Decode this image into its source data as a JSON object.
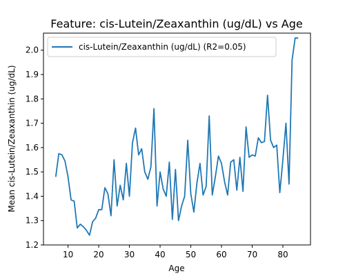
{
  "chart_data": {
    "type": "line",
    "title": "Feature: cis-Lutein/Zeaxanthin (ug/dL) vs Age",
    "xlabel": "Age",
    "ylabel": "Mean cis-Lutein/Zeaxanthin (ug/dL)",
    "xlim": [
      2,
      89
    ],
    "ylim": [
      1.2,
      2.07
    ],
    "xticks": [
      10,
      20,
      30,
      40,
      50,
      60,
      70,
      80
    ],
    "yticks": [
      1.2,
      1.3,
      1.4,
      1.5,
      1.6,
      1.7,
      1.8,
      1.9,
      2.0
    ],
    "grid": false,
    "legend": "top-left",
    "series": [
      {
        "name": "cis-Lutein/Zeaxanthin (ug/dL) (R2=0.05)",
        "color": "#1f77b4",
        "x": [
          6,
          7,
          8,
          9,
          10,
          11,
          12,
          13,
          14,
          15,
          16,
          17,
          18,
          19,
          20,
          21,
          22,
          23,
          24,
          25,
          26,
          27,
          28,
          29,
          30,
          31,
          32,
          33,
          34,
          35,
          36,
          37,
          38,
          39,
          40,
          41,
          42,
          43,
          44,
          45,
          46,
          47,
          48,
          49,
          50,
          51,
          52,
          53,
          54,
          55,
          56,
          57,
          58,
          59,
          60,
          61,
          62,
          63,
          64,
          65,
          66,
          67,
          68,
          69,
          70,
          71,
          72,
          73,
          74,
          75,
          76,
          77,
          78,
          79,
          80,
          81,
          82,
          83,
          84,
          85
        ],
        "y": [
          1.48,
          1.575,
          1.57,
          1.545,
          1.48,
          1.385,
          1.38,
          1.27,
          1.285,
          1.275,
          1.26,
          1.24,
          1.295,
          1.31,
          1.345,
          1.345,
          1.435,
          1.41,
          1.32,
          1.55,
          1.36,
          1.445,
          1.385,
          1.535,
          1.4,
          1.62,
          1.68,
          1.57,
          1.595,
          1.5,
          1.47,
          1.52,
          1.76,
          1.36,
          1.5,
          1.43,
          1.4,
          1.54,
          1.305,
          1.51,
          1.3,
          1.36,
          1.4,
          1.63,
          1.41,
          1.335,
          1.455,
          1.535,
          1.405,
          1.44,
          1.73,
          1.405,
          1.48,
          1.565,
          1.535,
          1.46,
          1.405,
          1.54,
          1.55,
          1.425,
          1.56,
          1.42,
          1.685,
          1.56,
          1.57,
          1.565,
          1.64,
          1.62,
          1.625,
          1.815,
          1.63,
          1.6,
          1.61,
          1.415,
          1.55,
          1.7,
          1.45,
          1.96,
          2.05,
          2.05
        ]
      }
    ]
  }
}
